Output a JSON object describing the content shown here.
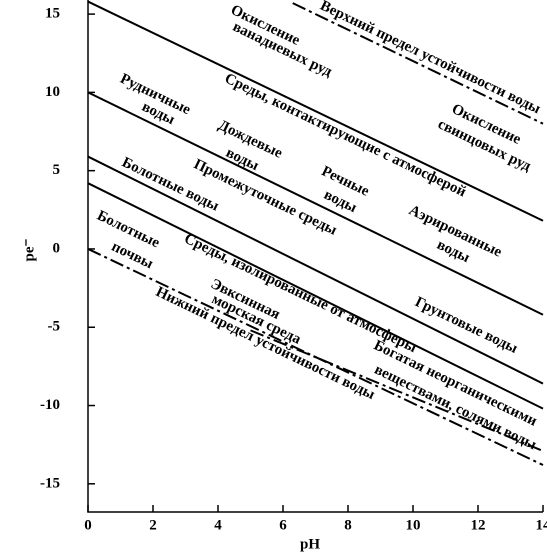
{
  "chart_data": {
    "type": "line",
    "xlabel": "pH",
    "ylabel": "pe⁻",
    "xlim": [
      0,
      14
    ],
    "ylim": [
      -16.8,
      15.9
    ],
    "xticks": [
      0,
      2,
      4,
      6,
      8,
      10,
      12,
      14
    ],
    "yticks": [
      -15,
      -10,
      -5,
      0,
      5,
      10,
      15
    ],
    "series": [
      {
        "x": [
          6.3,
          14
        ],
        "values": [
          15.7,
          8
        ],
        "color": "#000000",
        "style": "dashdot"
      },
      {
        "x": [
          0,
          14
        ],
        "values": [
          15.8,
          1.8
        ],
        "color": "#000000",
        "style": "solid"
      },
      {
        "x": [
          0,
          14
        ],
        "values": [
          10,
          -4.2
        ],
        "color": "#000000",
        "style": "solid"
      },
      {
        "x": [
          0,
          14
        ],
        "values": [
          5.9,
          -8.6
        ],
        "color": "#000000",
        "style": "solid"
      },
      {
        "x": [
          0,
          14
        ],
        "values": [
          4.2,
          -10.2
        ],
        "color": "#000000",
        "style": "solid"
      },
      {
        "x": [
          5,
          14
        ],
        "values": [
          -5.2,
          -12.9
        ],
        "color": "#000000",
        "style": "dashdot"
      },
      {
        "x": [
          0,
          14
        ],
        "values": [
          0,
          -13.8
        ],
        "color": "#000000",
        "style": "dashdot"
      }
    ],
    "annotations": [
      "Окисление",
      "ванадиевых руд",
      "Верхний предел устойчивости воды",
      "Рудничные",
      "воды",
      "Среды, контактирующие с атмосферой",
      "Окисление",
      "свинцовых руд",
      "Дождевые",
      "воды",
      "Болотные воды",
      "Промежуточные среды",
      "Речные",
      "воды",
      "Аэрированные",
      "воды",
      "Болотные",
      "почвы",
      "Среды, изолированные от атмосферы",
      "Грунтовые воды",
      "Эвксинная",
      "морская среда",
      "Нижний предел устойчивости воды",
      "Богатая неорганическими",
      "веществами, солями воды"
    ]
  }
}
